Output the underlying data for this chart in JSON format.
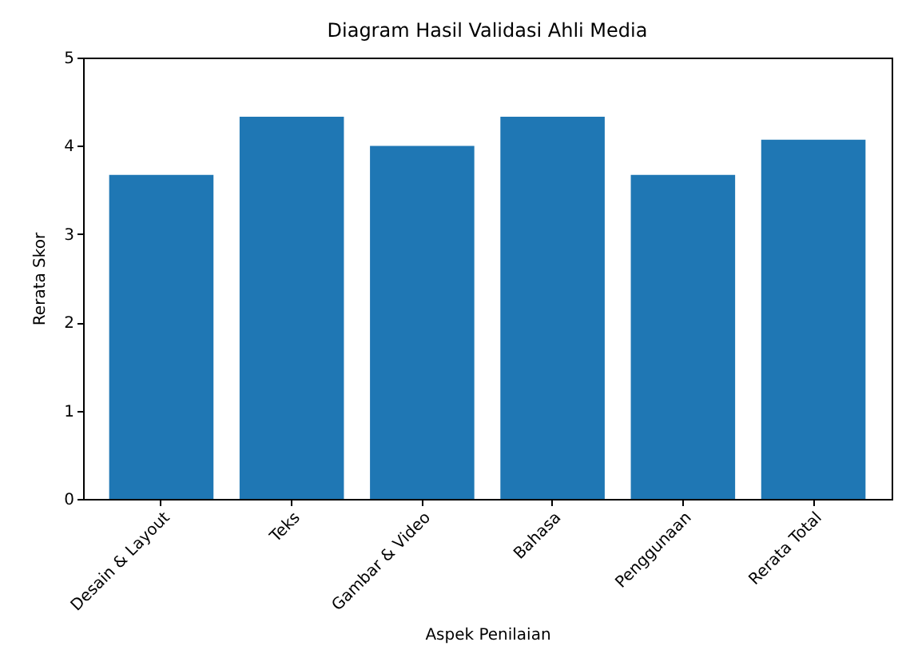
{
  "chart_data": {
    "type": "bar",
    "title": "Diagram Hasil Validasi Ahli Media",
    "xlabel": "Aspek Penilaian",
    "ylabel": "Rerata Skor",
    "categories": [
      "Desain & Layout",
      "Teks",
      "Gambar & Video",
      "Bahasa",
      "Penggunaan",
      "Rerata Total"
    ],
    "values": [
      3.67,
      4.33,
      4.0,
      4.33,
      3.67,
      4.07
    ],
    "color": "#1f77b4",
    "ylim": [
      0,
      5
    ],
    "yticks": [
      0,
      1,
      2,
      3,
      4,
      5
    ],
    "grid": false
  }
}
